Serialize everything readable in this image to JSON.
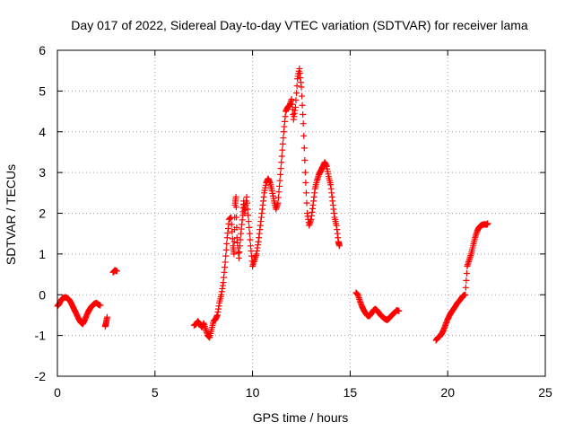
{
  "chart_data": {
    "type": "scatter",
    "title": "Day 017 of 2022, Sidereal Day-to-day VTEC variation (SDTVAR) for receiver lama",
    "xlabel": "GPS time / hours",
    "ylabel": "SDTVAR / TECUs",
    "xlim": [
      0,
      25
    ],
    "ylim": [
      -2,
      6
    ],
    "xticks": [
      0,
      5,
      10,
      15,
      20,
      25
    ],
    "yticks": [
      -2,
      -1,
      0,
      1,
      2,
      3,
      4,
      5,
      6
    ],
    "grid": true,
    "marker": "plus",
    "color": "#ff0000",
    "series": [
      {
        "name": "SDTVAR",
        "points": [
          [
            0.0,
            -0.28
          ],
          [
            0.1,
            -0.22
          ],
          [
            0.2,
            -0.12
          ],
          [
            0.3,
            -0.08
          ],
          [
            0.4,
            -0.06
          ],
          [
            0.5,
            -0.08
          ],
          [
            0.6,
            -0.12
          ],
          [
            0.7,
            -0.2
          ],
          [
            0.8,
            -0.3
          ],
          [
            0.9,
            -0.4
          ],
          [
            1.0,
            -0.5
          ],
          [
            1.1,
            -0.6
          ],
          [
            1.2,
            -0.68
          ],
          [
            1.3,
            -0.72
          ],
          [
            1.4,
            -0.62
          ],
          [
            1.5,
            -0.5
          ],
          [
            1.6,
            -0.4
          ],
          [
            1.7,
            -0.32
          ],
          [
            1.8,
            -0.26
          ],
          [
            1.9,
            -0.22
          ],
          [
            2.0,
            -0.2
          ],
          [
            2.1,
            -0.24
          ],
          [
            2.2,
            -0.26
          ],
          [
            2.45,
            -0.78
          ],
          [
            2.5,
            -0.68
          ],
          [
            2.55,
            -0.55
          ],
          [
            2.85,
            0.55
          ],
          [
            2.95,
            0.6
          ],
          [
            3.05,
            0.58
          ],
          [
            7.0,
            -0.75
          ],
          [
            7.1,
            -0.72
          ],
          [
            7.2,
            -0.65
          ],
          [
            7.3,
            -0.72
          ],
          [
            7.4,
            -0.8
          ],
          [
            7.5,
            -0.7
          ],
          [
            7.6,
            -0.85
          ],
          [
            7.7,
            -1.0
          ],
          [
            7.8,
            -1.05
          ],
          [
            7.9,
            -0.85
          ],
          [
            8.0,
            -0.65
          ],
          [
            8.1,
            -0.6
          ],
          [
            8.2,
            -0.5
          ],
          [
            8.3,
            -0.2
          ],
          [
            8.4,
            0.0
          ],
          [
            8.5,
            0.3
          ],
          [
            8.6,
            0.8
          ],
          [
            8.7,
            1.4
          ],
          [
            8.8,
            1.85
          ],
          [
            8.9,
            1.9
          ],
          [
            9.0,
            1.2
          ],
          [
            9.05,
            1.0
          ],
          [
            9.1,
            2.2
          ],
          [
            9.15,
            2.4
          ],
          [
            9.2,
            1.4
          ],
          [
            9.3,
            0.9
          ],
          [
            9.4,
            1.5
          ],
          [
            9.5,
            1.95
          ],
          [
            9.55,
            2.3
          ],
          [
            9.6,
            2.0
          ],
          [
            9.7,
            2.4
          ],
          [
            9.8,
            1.8
          ],
          [
            9.9,
            1.2
          ],
          [
            10.0,
            0.7
          ],
          [
            10.1,
            0.85
          ],
          [
            10.2,
            1.0
          ],
          [
            10.3,
            1.3
          ],
          [
            10.4,
            1.7
          ],
          [
            10.5,
            2.1
          ],
          [
            10.6,
            2.5
          ],
          [
            10.7,
            2.75
          ],
          [
            10.8,
            2.85
          ],
          [
            10.9,
            2.75
          ],
          [
            11.0,
            2.55
          ],
          [
            11.1,
            2.3
          ],
          [
            11.2,
            2.1
          ],
          [
            11.3,
            2.25
          ],
          [
            11.4,
            2.8
          ],
          [
            11.5,
            3.4
          ],
          [
            11.6,
            4.0
          ],
          [
            11.7,
            4.5
          ],
          [
            11.8,
            4.6
          ],
          [
            11.9,
            4.65
          ],
          [
            12.0,
            4.8
          ],
          [
            12.1,
            4.3
          ],
          [
            12.2,
            4.6
          ],
          [
            12.3,
            5.3
          ],
          [
            12.4,
            5.55
          ],
          [
            12.5,
            5.1
          ],
          [
            12.6,
            4.2
          ],
          [
            12.7,
            3.0
          ],
          [
            12.8,
            2.0
          ],
          [
            12.9,
            1.7
          ],
          [
            13.0,
            1.85
          ],
          [
            13.1,
            2.2
          ],
          [
            13.2,
            2.6
          ],
          [
            13.3,
            2.8
          ],
          [
            13.4,
            2.95
          ],
          [
            13.5,
            3.05
          ],
          [
            13.6,
            3.15
          ],
          [
            13.7,
            3.25
          ],
          [
            13.8,
            3.15
          ],
          [
            13.9,
            2.9
          ],
          [
            14.0,
            2.7
          ],
          [
            14.1,
            2.3
          ],
          [
            14.2,
            1.9
          ],
          [
            14.3,
            1.7
          ],
          [
            14.4,
            1.3
          ],
          [
            14.45,
            1.2
          ],
          [
            15.3,
            0.05
          ],
          [
            15.4,
            0.0
          ],
          [
            15.5,
            -0.15
          ],
          [
            15.6,
            -0.28
          ],
          [
            15.7,
            -0.38
          ],
          [
            15.8,
            -0.46
          ],
          [
            15.9,
            -0.52
          ],
          [
            16.0,
            -0.52
          ],
          [
            16.1,
            -0.45
          ],
          [
            16.2,
            -0.38
          ],
          [
            16.3,
            -0.35
          ],
          [
            16.4,
            -0.4
          ],
          [
            16.5,
            -0.46
          ],
          [
            16.6,
            -0.52
          ],
          [
            16.7,
            -0.56
          ],
          [
            16.8,
            -0.6
          ],
          [
            16.9,
            -0.62
          ],
          [
            17.0,
            -0.58
          ],
          [
            17.1,
            -0.52
          ],
          [
            17.2,
            -0.47
          ],
          [
            17.3,
            -0.43
          ],
          [
            17.4,
            -0.38
          ],
          [
            17.5,
            -0.4
          ],
          [
            19.4,
            -1.12
          ],
          [
            19.5,
            -1.05
          ],
          [
            19.6,
            -1.02
          ],
          [
            19.7,
            -0.95
          ],
          [
            19.8,
            -0.85
          ],
          [
            19.9,
            -0.72
          ],
          [
            20.0,
            -0.6
          ],
          [
            20.1,
            -0.5
          ],
          [
            20.2,
            -0.42
          ],
          [
            20.3,
            -0.35
          ],
          [
            20.4,
            -0.28
          ],
          [
            20.5,
            -0.2
          ],
          [
            20.6,
            -0.15
          ],
          [
            20.7,
            -0.08
          ],
          [
            20.8,
            -0.02
          ],
          [
            20.9,
            0.0
          ],
          [
            21.0,
            0.7
          ],
          [
            21.1,
            0.85
          ],
          [
            21.2,
            1.0
          ],
          [
            21.3,
            1.2
          ],
          [
            21.4,
            1.4
          ],
          [
            21.5,
            1.55
          ],
          [
            21.6,
            1.65
          ],
          [
            21.7,
            1.7
          ],
          [
            21.8,
            1.72
          ],
          [
            21.9,
            1.73
          ],
          [
            22.0,
            1.72
          ],
          [
            22.05,
            1.75
          ]
        ]
      }
    ]
  }
}
